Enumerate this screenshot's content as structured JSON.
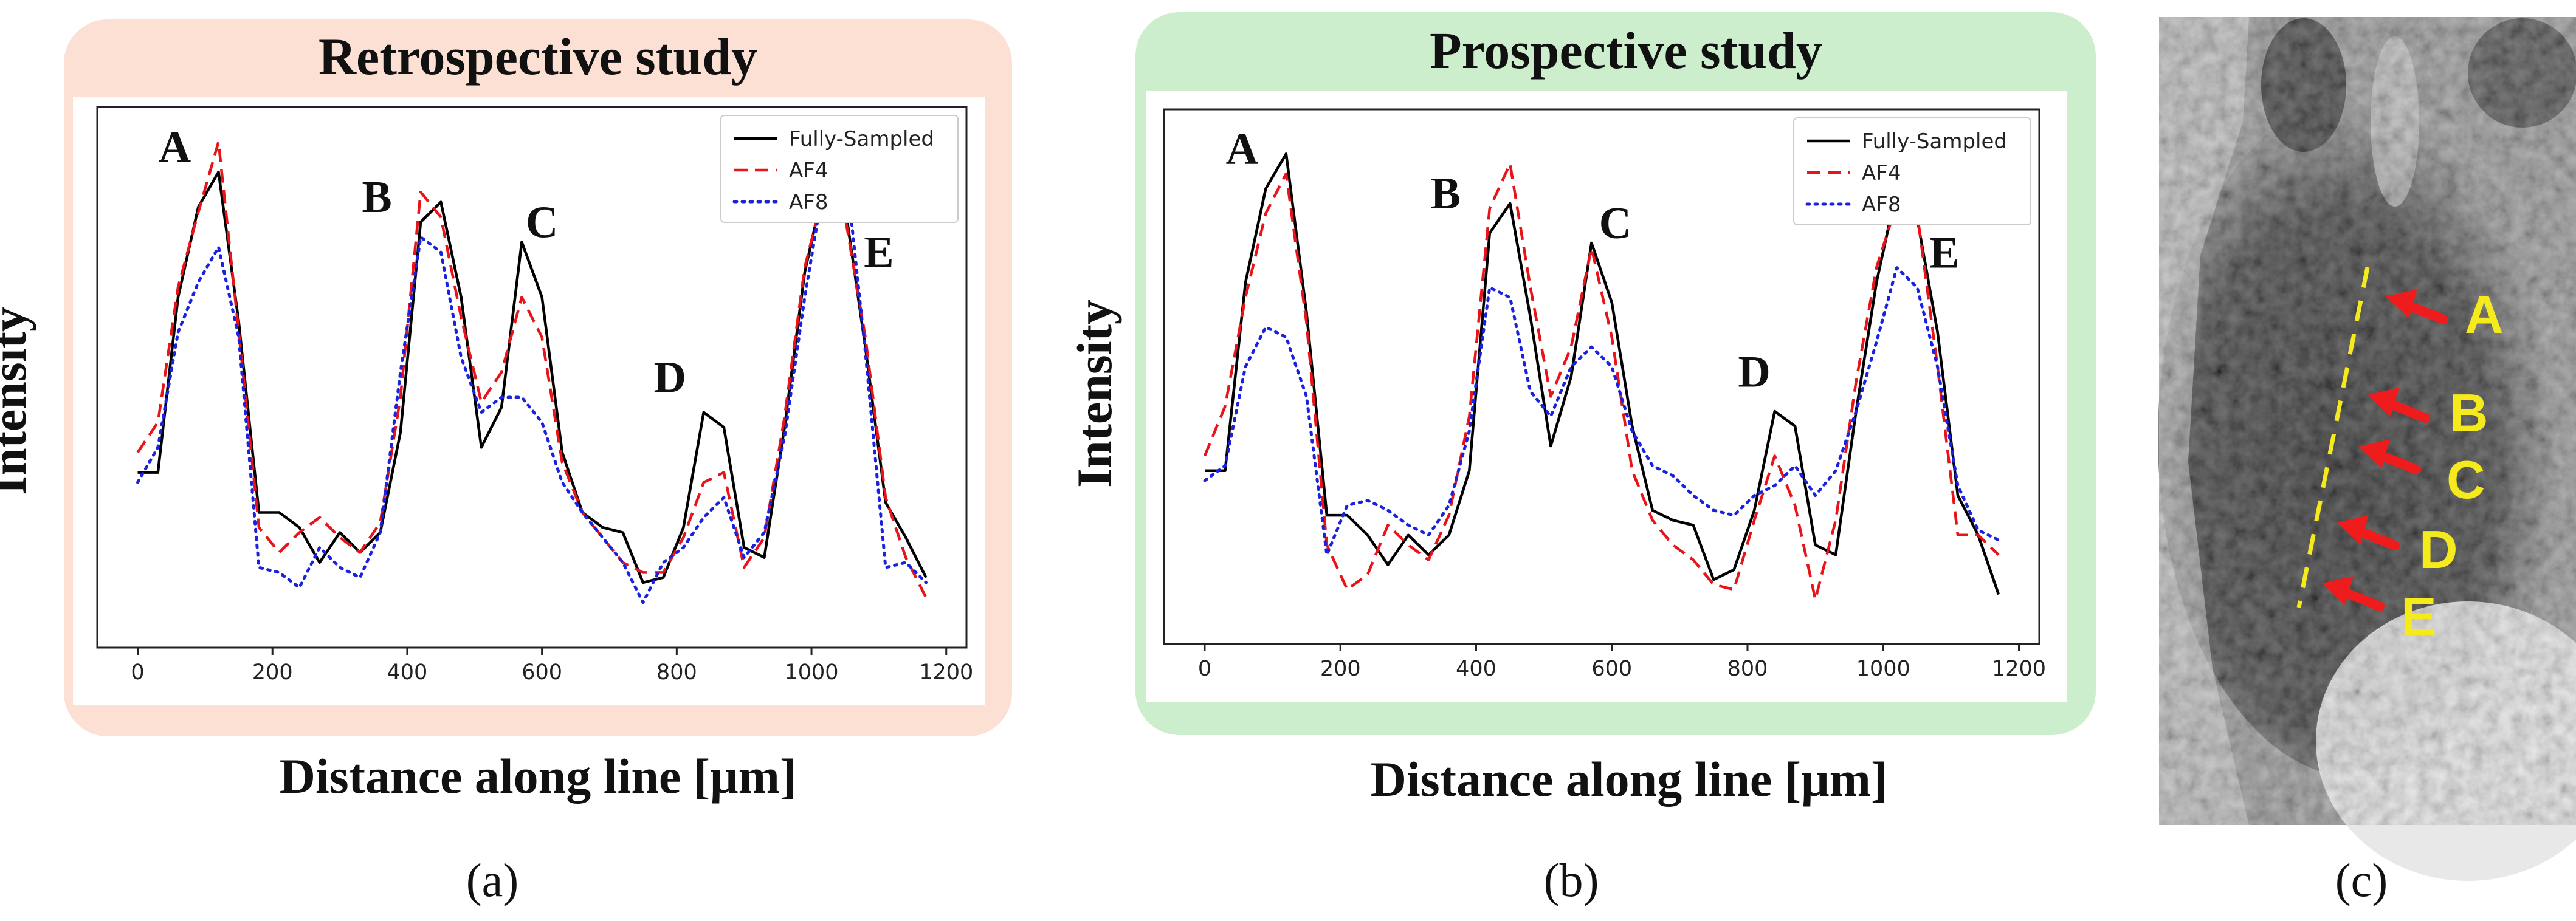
{
  "captions": [
    "(a)",
    "(b)",
    "(c)"
  ],
  "image_c": {
    "labels": [
      "A",
      "B",
      "C",
      "D",
      "E"
    ],
    "colors": {
      "arrow": "#ee1c1c",
      "label": "#f4ea1c",
      "line": "#f4ea1c"
    }
  },
  "chart_data": [
    {
      "type": "line",
      "title": "Retrospective study",
      "xlabel": "Distance along line [μm]",
      "ylabel": "Intensity",
      "xlim": [
        -60,
        1230
      ],
      "ylim": [
        0,
        1.08
      ],
      "xticks": [
        0,
        200,
        400,
        600,
        800,
        1000,
        1200
      ],
      "background": "#fce0d4",
      "legend_position": "top-right",
      "x": [
        0,
        30,
        60,
        90,
        120,
        150,
        180,
        210,
        240,
        270,
        300,
        330,
        360,
        390,
        420,
        450,
        480,
        510,
        540,
        570,
        600,
        630,
        660,
        690,
        720,
        750,
        780,
        810,
        840,
        870,
        900,
        930,
        960,
        990,
        1020,
        1050,
        1080,
        1110,
        1140,
        1170
      ],
      "series": [
        {
          "name": "Fully-Sampled",
          "color": "#000000",
          "dash": "solid",
          "values": [
            0.35,
            0.35,
            0.7,
            0.88,
            0.95,
            0.65,
            0.27,
            0.27,
            0.24,
            0.17,
            0.23,
            0.19,
            0.23,
            0.43,
            0.85,
            0.89,
            0.7,
            0.4,
            0.48,
            0.81,
            0.7,
            0.39,
            0.27,
            0.24,
            0.23,
            0.13,
            0.14,
            0.24,
            0.47,
            0.44,
            0.2,
            0.18,
            0.44,
            0.75,
            0.93,
            0.88,
            0.6,
            0.29,
            0.22,
            0.14
          ]
        },
        {
          "name": "AF4",
          "color": "#e8141a",
          "dash": "dashed",
          "values": [
            0.39,
            0.45,
            0.72,
            0.87,
            1.01,
            0.63,
            0.24,
            0.19,
            0.23,
            0.26,
            0.22,
            0.19,
            0.25,
            0.5,
            0.91,
            0.86,
            0.66,
            0.49,
            0.55,
            0.7,
            0.62,
            0.37,
            0.27,
            0.22,
            0.17,
            0.15,
            0.15,
            0.22,
            0.33,
            0.35,
            0.16,
            0.22,
            0.46,
            0.76,
            0.92,
            0.86,
            0.62,
            0.3,
            0.18,
            0.1
          ]
        },
        {
          "name": "AF8",
          "color": "#1a22e0",
          "dash": "dotted",
          "values": [
            0.33,
            0.4,
            0.63,
            0.73,
            0.8,
            0.62,
            0.16,
            0.15,
            0.12,
            0.2,
            0.16,
            0.14,
            0.23,
            0.55,
            0.82,
            0.79,
            0.58,
            0.47,
            0.5,
            0.5,
            0.45,
            0.33,
            0.27,
            0.22,
            0.17,
            0.09,
            0.17,
            0.2,
            0.26,
            0.3,
            0.18,
            0.23,
            0.42,
            0.7,
            0.94,
            0.97,
            0.59,
            0.16,
            0.17,
            0.13
          ]
        }
      ],
      "annotations": [
        {
          "text": "A",
          "x": 55,
          "y": 0.97
        },
        {
          "text": "B",
          "x": 355,
          "y": 0.87
        },
        {
          "text": "C",
          "x": 600,
          "y": 0.82
        },
        {
          "text": "D",
          "x": 790,
          "y": 0.51
        },
        {
          "text": "E",
          "x": 1100,
          "y": 0.76
        }
      ]
    },
    {
      "type": "line",
      "title": "Prospective study",
      "xlabel": "Distance along line [μm]",
      "ylabel": "Intensity",
      "xlim": [
        -60,
        1230
      ],
      "ylim": [
        0,
        1.08
      ],
      "xticks": [
        0,
        200,
        400,
        600,
        800,
        1000,
        1200
      ],
      "background": "#cdeecc",
      "legend_position": "top-right",
      "x": [
        0,
        30,
        60,
        90,
        120,
        150,
        180,
        210,
        240,
        270,
        300,
        330,
        360,
        390,
        420,
        450,
        480,
        510,
        540,
        570,
        600,
        630,
        660,
        690,
        720,
        750,
        780,
        810,
        840,
        870,
        900,
        930,
        960,
        990,
        1020,
        1050,
        1080,
        1110,
        1140,
        1170
      ],
      "series": [
        {
          "name": "Fully-Sampled",
          "color": "#000000",
          "dash": "solid",
          "values": [
            0.35,
            0.35,
            0.73,
            0.92,
            0.99,
            0.67,
            0.26,
            0.26,
            0.22,
            0.16,
            0.22,
            0.18,
            0.22,
            0.35,
            0.83,
            0.89,
            0.66,
            0.4,
            0.54,
            0.81,
            0.69,
            0.44,
            0.27,
            0.25,
            0.24,
            0.13,
            0.15,
            0.27,
            0.47,
            0.44,
            0.2,
            0.18,
            0.47,
            0.73,
            0.92,
            0.86,
            0.63,
            0.3,
            0.22,
            0.1
          ]
        },
        {
          "name": "AF4",
          "color": "#e8141a",
          "dash": "dashed",
          "values": [
            0.38,
            0.48,
            0.7,
            0.87,
            0.95,
            0.65,
            0.2,
            0.11,
            0.14,
            0.24,
            0.2,
            0.17,
            0.26,
            0.46,
            0.88,
            0.97,
            0.72,
            0.5,
            0.6,
            0.8,
            0.62,
            0.35,
            0.25,
            0.2,
            0.17,
            0.12,
            0.11,
            0.25,
            0.38,
            0.28,
            0.09,
            0.25,
            0.53,
            0.76,
            0.89,
            0.87,
            0.56,
            0.22,
            0.22,
            0.18
          ]
        },
        {
          "name": "AF8",
          "color": "#1a22e0",
          "dash": "dotted",
          "values": [
            0.33,
            0.36,
            0.56,
            0.64,
            0.62,
            0.5,
            0.18,
            0.28,
            0.29,
            0.27,
            0.24,
            0.22,
            0.28,
            0.43,
            0.72,
            0.7,
            0.51,
            0.46,
            0.56,
            0.6,
            0.56,
            0.43,
            0.36,
            0.34,
            0.3,
            0.27,
            0.26,
            0.3,
            0.32,
            0.36,
            0.3,
            0.35,
            0.47,
            0.61,
            0.76,
            0.72,
            0.56,
            0.32,
            0.23,
            0.21
          ]
        }
      ],
      "annotations": [
        {
          "text": "A",
          "x": 55,
          "y": 0.97
        },
        {
          "text": "B",
          "x": 355,
          "y": 0.88
        },
        {
          "text": "C",
          "x": 605,
          "y": 0.82
        },
        {
          "text": "D",
          "x": 810,
          "y": 0.52
        },
        {
          "text": "E",
          "x": 1090,
          "y": 0.76
        }
      ]
    }
  ]
}
